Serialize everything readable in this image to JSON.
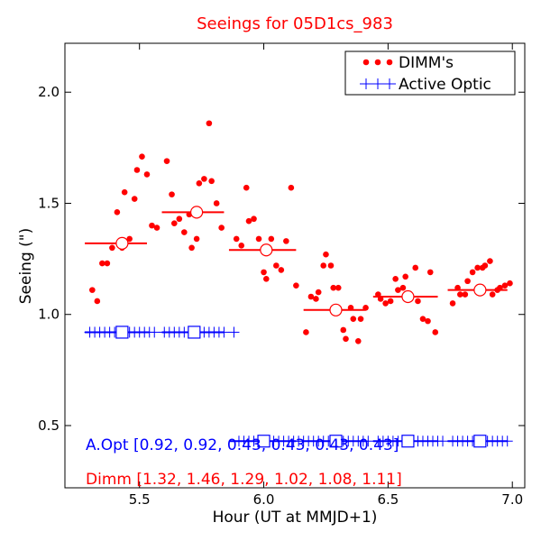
{
  "chart_data": {
    "type": "scatter",
    "title": "Seeings for 05D1cs_983",
    "xlabel": "Hour (UT at MMJD+1)",
    "ylabel": "Seeing (\")",
    "xlim": [
      5.2,
      7.05
    ],
    "ylim": [
      0.22,
      2.22
    ],
    "xticks": [
      5.5,
      6.0,
      6.5,
      7.0
    ],
    "xtick_labels": [
      "5.5",
      "6.0",
      "6.5",
      "7.0"
    ],
    "yticks": [
      0.5,
      1.0,
      1.5,
      2.0
    ],
    "ytick_labels": [
      "0.5",
      "1.0",
      "1.5",
      "2.0"
    ],
    "grid": false,
    "legend_position": "top-right",
    "legend": [
      {
        "label": "DIMM's",
        "color": "#ff0000",
        "marker": "dot"
      },
      {
        "label": "Active Optic",
        "color": "#0000ff",
        "marker": "plus"
      }
    ],
    "annotations": [
      {
        "text": "A.Opt [0.92, 0.92, 0.43, 0.43, 0.43, 0.43]",
        "color": "#0000ff"
      },
      {
        "text": "Dimm [1.32, 1.46, 1.29, 1.02, 1.08, 1.11]",
        "color": "#ff0000"
      }
    ],
    "series": [
      {
        "name": "DIMM's",
        "color": "#ff0000",
        "x": [
          5.31,
          5.33,
          5.35,
          5.37,
          5.39,
          5.41,
          5.43,
          5.44,
          5.46,
          5.48,
          5.49,
          5.51,
          5.53,
          5.55,
          5.57,
          5.61,
          5.63,
          5.64,
          5.66,
          5.68,
          5.7,
          5.71,
          5.73,
          5.74,
          5.76,
          5.78,
          5.79,
          5.81,
          5.83,
          5.89,
          5.91,
          5.93,
          5.94,
          5.96,
          5.98,
          6.0,
          6.01,
          6.03,
          6.05,
          6.07,
          6.09,
          6.11,
          6.13,
          6.17,
          6.19,
          6.21,
          6.22,
          6.24,
          6.25,
          6.27,
          6.28,
          6.3,
          6.32,
          6.33,
          6.35,
          6.36,
          6.38,
          6.39,
          6.41,
          6.46,
          6.47,
          6.49,
          6.51,
          6.53,
          6.54,
          6.56,
          6.57,
          6.59,
          6.61,
          6.62,
          6.64,
          6.66,
          6.67,
          6.69,
          6.76,
          6.78,
          6.79,
          6.81,
          6.82,
          6.84,
          6.86,
          6.88,
          6.89,
          6.91,
          6.92,
          6.94,
          6.95,
          6.97,
          6.99
        ],
        "y": [
          1.11,
          1.06,
          1.23,
          1.23,
          1.3,
          1.46,
          1.3,
          1.55,
          1.34,
          1.52,
          1.65,
          1.71,
          1.63,
          1.4,
          1.39,
          1.69,
          1.54,
          1.41,
          1.43,
          1.37,
          1.45,
          1.3,
          1.34,
          1.59,
          1.61,
          1.86,
          1.6,
          1.5,
          1.39,
          1.34,
          1.31,
          1.57,
          1.42,
          1.43,
          1.34,
          1.19,
          1.16,
          1.34,
          1.22,
          1.2,
          1.33,
          1.57,
          1.13,
          0.92,
          1.08,
          1.07,
          1.1,
          1.22,
          1.27,
          1.22,
          1.12,
          1.12,
          0.93,
          0.89,
          1.03,
          0.98,
          0.88,
          0.98,
          1.03,
          1.09,
          1.07,
          1.05,
          1.06,
          1.16,
          1.11,
          1.12,
          1.17,
          1.07,
          1.21,
          1.06,
          0.98,
          0.97,
          1.19,
          0.92,
          1.05,
          1.12,
          1.09,
          1.09,
          1.15,
          1.19,
          1.21,
          1.21,
          1.22,
          1.24,
          1.09,
          1.11,
          1.12,
          1.13,
          1.14
        ]
      },
      {
        "name": "Active Optic",
        "color": "#0000ff",
        "x": [
          5.3,
          5.32,
          5.34,
          5.36,
          5.38,
          5.4,
          5.42,
          5.44,
          5.46,
          5.48,
          5.5,
          5.52,
          5.54,
          5.56,
          5.6,
          5.62,
          5.64,
          5.66,
          5.68,
          5.7,
          5.72,
          5.74,
          5.76,
          5.78,
          5.8,
          5.82,
          5.84,
          5.88,
          5.9,
          5.92,
          5.94,
          5.96,
          5.98,
          6.0,
          6.02,
          6.04,
          6.06,
          6.08,
          6.1,
          6.12,
          6.14,
          6.16,
          6.18,
          6.2,
          6.22,
          6.24,
          6.26,
          6.28,
          6.3,
          6.32,
          6.34,
          6.36,
          6.38,
          6.4,
          6.42,
          6.46,
          6.48,
          6.5,
          6.52,
          6.54,
          6.56,
          6.58,
          6.6,
          6.62,
          6.64,
          6.66,
          6.68,
          6.7,
          6.72,
          6.76,
          6.78,
          6.8,
          6.82,
          6.84,
          6.86,
          6.88,
          6.9,
          6.92,
          6.94,
          6.96,
          6.98
        ],
        "y": [
          0.92,
          0.92,
          0.92,
          0.92,
          0.92,
          0.92,
          0.92,
          0.92,
          0.92,
          0.92,
          0.92,
          0.92,
          0.92,
          0.92,
          0.92,
          0.92,
          0.92,
          0.92,
          0.92,
          0.92,
          0.92,
          0.92,
          0.92,
          0.92,
          0.92,
          0.92,
          0.92,
          0.92,
          0.43,
          0.43,
          0.43,
          0.43,
          0.43,
          0.43,
          0.43,
          0.43,
          0.43,
          0.43,
          0.43,
          0.43,
          0.43,
          0.43,
          0.43,
          0.43,
          0.43,
          0.43,
          0.43,
          0.43,
          0.43,
          0.43,
          0.43,
          0.43,
          0.43,
          0.43,
          0.43,
          0.43,
          0.43,
          0.43,
          0.43,
          0.43,
          0.43,
          0.43,
          0.43,
          0.43,
          0.43,
          0.43,
          0.43,
          0.43,
          0.43,
          0.43,
          0.43,
          0.43,
          0.43,
          0.43,
          0.43,
          0.43,
          0.43,
          0.43,
          0.43,
          0.43,
          0.43
        ]
      }
    ],
    "dimm_segments": [
      {
        "x0": 5.28,
        "x1": 5.53,
        "y": 1.32,
        "x_mean": 5.43
      },
      {
        "x0": 5.59,
        "x1": 5.84,
        "y": 1.46,
        "x_mean": 5.73
      },
      {
        "x0": 5.86,
        "x1": 6.13,
        "y": 1.29,
        "x_mean": 6.01
      },
      {
        "x0": 6.16,
        "x1": 6.41,
        "y": 1.02,
        "x_mean": 6.29
      },
      {
        "x0": 6.44,
        "x1": 6.7,
        "y": 1.08,
        "x_mean": 6.58
      },
      {
        "x0": 6.74,
        "x1": 6.98,
        "y": 1.11,
        "x_mean": 6.87
      }
    ],
    "aopt_segments": [
      {
        "x0": 5.28,
        "x1": 5.54,
        "y": 0.92,
        "x_mean": 5.43
      },
      {
        "x0": 5.59,
        "x1": 5.84,
        "y": 0.92,
        "x_mean": 5.72
      },
      {
        "x0": 5.86,
        "x1": 6.13,
        "y": 0.43,
        "x_mean": 6.0
      },
      {
        "x0": 6.16,
        "x1": 6.41,
        "y": 0.43,
        "x_mean": 6.29
      },
      {
        "x0": 6.44,
        "x1": 6.7,
        "y": 0.43,
        "x_mean": 6.58
      },
      {
        "x0": 6.74,
        "x1": 6.98,
        "y": 0.43,
        "x_mean": 6.87
      }
    ]
  }
}
